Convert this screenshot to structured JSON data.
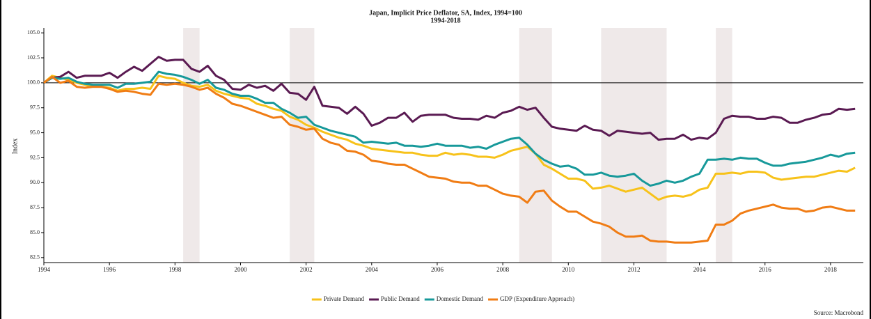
{
  "chart_data": {
    "type": "line",
    "title": "Japan, Implicit Price Deflator, SA, Index, 1994=100",
    "subtitle": "1994-2018",
    "y_label": "Index",
    "source": "Source: Macrobond",
    "xlim": [
      1994,
      2019
    ],
    "xticks": [
      1994,
      1996,
      1998,
      2000,
      2002,
      2004,
      2006,
      2008,
      2010,
      2012,
      2014,
      2016,
      2018
    ],
    "ylim": [
      82,
      105.5
    ],
    "yticks": [
      82.5,
      {
        "value": 85,
        "label": "85.0"
      },
      87.5,
      {
        "value": 90,
        "label": "90.0"
      },
      92.5,
      {
        "value": 95,
        "label": "95.0"
      },
      97.5,
      {
        "value": 100,
        "label": "100.0"
      },
      102.5,
      {
        "value": 105,
        "label": "105.0"
      }
    ],
    "reference_line": 100,
    "shaded_periods": [
      [
        1998.25,
        1998.75
      ],
      [
        2001.5,
        2002.25
      ],
      [
        2008.5,
        2009.5
      ],
      [
        2011,
        2013
      ],
      [
        2014.5,
        2015
      ]
    ],
    "x": [
      1994,
      1994.25,
      1994.5,
      1994.75,
      1995,
      1995.25,
      1995.5,
      1995.75,
      1996,
      1996.25,
      1996.5,
      1996.75,
      1997,
      1997.25,
      1997.5,
      1997.75,
      1998,
      1998.25,
      1998.5,
      1998.75,
      1999,
      1999.25,
      1999.5,
      1999.75,
      2000,
      2000.25,
      2000.5,
      2000.75,
      2001,
      2001.25,
      2001.5,
      2001.75,
      2002,
      2002.25,
      2002.5,
      2002.75,
      2003,
      2003.25,
      2003.5,
      2003.75,
      2004,
      2004.25,
      2004.5,
      2004.75,
      2005,
      2005.25,
      2005.5,
      2005.75,
      2006,
      2006.25,
      2006.5,
      2006.75,
      2007,
      2007.25,
      2007.5,
      2007.75,
      2008,
      2008.25,
      2008.5,
      2008.75,
      2009,
      2009.25,
      2009.5,
      2009.75,
      2010,
      2010.25,
      2010.5,
      2010.75,
      2011,
      2011.25,
      2011.5,
      2011.75,
      2012,
      2012.25,
      2012.5,
      2012.75,
      2013,
      2013.25,
      2013.5,
      2013.75,
      2014,
      2014.25,
      2014.5,
      2014.75,
      2015,
      2015.25,
      2015.5,
      2015.75,
      2016,
      2016.25,
      2016.5,
      2016.75,
      2017,
      2017.25,
      2017.5,
      2017.75,
      2018,
      2018.25,
      2018.5,
      2018.75
    ],
    "series": [
      {
        "name": "Private Demand",
        "color": "#f7c21a",
        "values": [
          100,
          100.7,
          100.5,
          100.3,
          100.0,
          99.8,
          99.6,
          99.6,
          99.5,
          99.2,
          99.4,
          99.4,
          99.5,
          99.4,
          100.7,
          100.5,
          100.4,
          100.0,
          99.7,
          99.6,
          99.8,
          99.2,
          98.9,
          98.7,
          98.5,
          98.4,
          97.9,
          97.7,
          97.4,
          97.2,
          96.6,
          96.3,
          95.8,
          95.5,
          95.1,
          94.8,
          94.5,
          94.3,
          93.9,
          93.7,
          93.4,
          93.3,
          93.2,
          93.1,
          93.0,
          93.0,
          92.8,
          92.7,
          92.7,
          93.0,
          92.8,
          92.9,
          92.8,
          92.6,
          92.6,
          92.5,
          92.8,
          93.2,
          93.4,
          93.6,
          92.9,
          91.8,
          91.4,
          90.9,
          90.4,
          90.4,
          90.2,
          89.4,
          89.5,
          89.7,
          89.4,
          89.1,
          89.3,
          89.5,
          88.9,
          88.3,
          88.6,
          88.7,
          88.6,
          88.8,
          89.3,
          89.5,
          90.9,
          90.9,
          91.0,
          90.9,
          91.1,
          91.1,
          91.0,
          90.5,
          90.3,
          90.4,
          90.5,
          90.6,
          90.6,
          90.8,
          91.0,
          91.2,
          91.1,
          91.5
        ]
      },
      {
        "name": "Public Demand",
        "color": "#5a1a52",
        "values": [
          100,
          100.5,
          100.6,
          101.1,
          100.5,
          100.7,
          100.7,
          100.7,
          101.0,
          100.5,
          101.1,
          101.6,
          101.2,
          101.9,
          102.6,
          102.2,
          102.3,
          102.3,
          101.4,
          101.1,
          101.7,
          100.7,
          100.3,
          99.4,
          99.3,
          99.8,
          99.5,
          99.7,
          99.2,
          99.9,
          99.0,
          98.9,
          98.3,
          99.6,
          97.7,
          97.6,
          97.5,
          96.9,
          97.6,
          96.9,
          95.7,
          96.0,
          96.5,
          96.5,
          97.0,
          96.1,
          96.7,
          96.8,
          96.8,
          96.8,
          96.5,
          96.4,
          96.4,
          96.3,
          96.7,
          96.5,
          97.0,
          97.2,
          97.6,
          97.3,
          97.5,
          96.5,
          95.6,
          95.4,
          95.3,
          95.2,
          95.7,
          95.3,
          95.2,
          94.7,
          95.2,
          95.1,
          95.0,
          94.9,
          95.0,
          94.3,
          94.4,
          94.4,
          94.8,
          94.3,
          94.5,
          94.4,
          95.0,
          96.4,
          96.7,
          96.6,
          96.6,
          96.4,
          96.4,
          96.6,
          96.5,
          96.0,
          96.0,
          96.3,
          96.5,
          96.8,
          96.9,
          97.4,
          97.3,
          97.4
        ]
      },
      {
        "name": "Domestic Demand",
        "color": "#17999a",
        "values": [
          100,
          100.5,
          100.4,
          100.5,
          100.1,
          99.9,
          99.8,
          99.8,
          99.8,
          99.5,
          99.9,
          99.9,
          100.0,
          100.1,
          101.1,
          100.9,
          100.8,
          100.6,
          100.3,
          99.9,
          100.3,
          99.5,
          99.3,
          98.9,
          98.7,
          98.7,
          98.4,
          98.0,
          98.0,
          97.4,
          97.0,
          96.5,
          96.6,
          95.8,
          95.5,
          95.2,
          95.0,
          94.8,
          94.6,
          94.0,
          94.1,
          94.0,
          93.9,
          94.0,
          93.7,
          93.7,
          93.6,
          93.7,
          93.9,
          93.7,
          93.7,
          93.7,
          93.5,
          93.6,
          93.4,
          93.8,
          94.1,
          94.4,
          94.5,
          93.8,
          92.9,
          92.3,
          91.9,
          91.6,
          91.7,
          91.4,
          90.8,
          90.8,
          91.0,
          90.7,
          90.6,
          90.7,
          90.9,
          90.2,
          89.7,
          89.9,
          90.2,
          90.0,
          90.2,
          90.6,
          90.9,
          92.3,
          92.3,
          92.4,
          92.3,
          92.5,
          92.4,
          92.4,
          92.0,
          91.7,
          91.7,
          91.9,
          92.0,
          92.1,
          92.3,
          92.5,
          92.8,
          92.6,
          92.9,
          93.0
        ]
      },
      {
        "name": "GDP (Expenditure Approach)",
        "color": "#f07c14",
        "values": [
          100,
          100.6,
          100.0,
          100.2,
          99.6,
          99.5,
          99.6,
          99.6,
          99.4,
          99.1,
          99.2,
          99.1,
          98.9,
          98.8,
          99.9,
          99.8,
          99.9,
          99.8,
          99.6,
          99.3,
          99.5,
          98.9,
          98.5,
          97.9,
          97.7,
          97.4,
          97.1,
          96.8,
          96.5,
          96.6,
          95.8,
          95.6,
          95.3,
          95.4,
          94.4,
          94.0,
          93.8,
          93.2,
          93.1,
          92.8,
          92.2,
          92.1,
          91.9,
          91.8,
          91.8,
          91.4,
          91.0,
          90.6,
          90.5,
          90.4,
          90.1,
          90.0,
          90.0,
          89.7,
          89.7,
          89.3,
          88.9,
          88.7,
          88.6,
          88.0,
          89.1,
          89.2,
          88.2,
          87.6,
          87.1,
          87.1,
          86.6,
          86.1,
          85.9,
          85.6,
          85.0,
          84.6,
          84.6,
          84.7,
          84.2,
          84.1,
          84.1,
          84.0,
          84.0,
          84.0,
          84.1,
          84.2,
          85.8,
          85.8,
          86.2,
          86.9,
          87.2,
          87.4,
          87.6,
          87.8,
          87.5,
          87.4,
          87.4,
          87.1,
          87.2,
          87.5,
          87.6,
          87.4,
          87.2,
          87.2
        ]
      }
    ]
  }
}
